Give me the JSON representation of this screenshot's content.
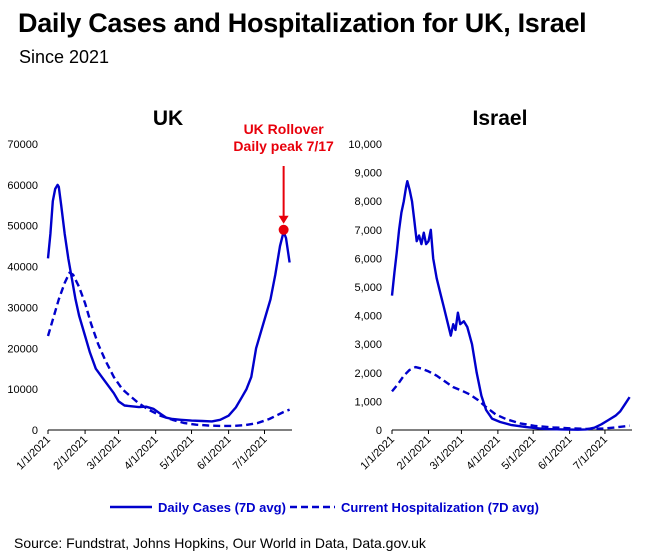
{
  "title": "Daily Cases and Hospitalization for UK, Israel",
  "subtitle": "Since 2021",
  "source": "Source: Fundstrat, Johns Hopkins, Our World in Data, Data.gov.uk",
  "legend": {
    "daily": "Daily Cases (7D avg)",
    "hosp": "Current Hospitalization (7D avg)"
  },
  "colors": {
    "series": "#0000cc",
    "annotation": "#e8000b"
  },
  "chart_data": [
    {
      "type": "line",
      "title": "UK",
      "ylim": [
        0,
        70000
      ],
      "yticks": [
        "0",
        "10000",
        "20000",
        "30000",
        "40000",
        "50000",
        "60000",
        "70000"
      ],
      "xlim": [
        "2021-01-01",
        "2021-07-24"
      ],
      "xticks": [
        {
          "date": "2021-01-01",
          "label": "1/1/2021"
        },
        {
          "date": "2021-02-01",
          "label": "2/1/2021"
        },
        {
          "date": "2021-03-01",
          "label": "3/1/2021"
        },
        {
          "date": "2021-04-01",
          "label": "4/1/2021"
        },
        {
          "date": "2021-05-01",
          "label": "5/1/2021"
        },
        {
          "date": "2021-06-01",
          "label": "6/1/2021"
        },
        {
          "date": "2021-07-01",
          "label": "7/1/2021"
        }
      ],
      "annotation": {
        "text": [
          "UK Rollover",
          "Daily peak 7/17"
        ],
        "date": "2021-07-17",
        "value": 49000
      },
      "series": [
        {
          "name": "Daily Cases (7D avg)",
          "style": "solid",
          "points": [
            [
              "2021-01-01",
              42000
            ],
            [
              "2021-01-03",
              48000
            ],
            [
              "2021-01-05",
              56000
            ],
            [
              "2021-01-07",
              59000
            ],
            [
              "2021-01-09",
              60000
            ],
            [
              "2021-01-10",
              59500
            ],
            [
              "2021-01-12",
              55000
            ],
            [
              "2021-01-15",
              48000
            ],
            [
              "2021-01-18",
              42000
            ],
            [
              "2021-01-21",
              37000
            ],
            [
              "2021-01-24",
              32000
            ],
            [
              "2021-01-27",
              28000
            ],
            [
              "2021-02-01",
              23000
            ],
            [
              "2021-02-05",
              19000
            ],
            [
              "2021-02-10",
              15000
            ],
            [
              "2021-02-15",
              13000
            ],
            [
              "2021-02-20",
              11000
            ],
            [
              "2021-02-25",
              9000
            ],
            [
              "2021-03-01",
              7000
            ],
            [
              "2021-03-06",
              6000
            ],
            [
              "2021-03-12",
              5800
            ],
            [
              "2021-03-18",
              5600
            ],
            [
              "2021-03-24",
              5700
            ],
            [
              "2021-03-30",
              5200
            ],
            [
              "2021-04-05",
              4000
            ],
            [
              "2021-04-10",
              3000
            ],
            [
              "2021-04-15",
              2700
            ],
            [
              "2021-04-22",
              2500
            ],
            [
              "2021-05-01",
              2300
            ],
            [
              "2021-05-10",
              2200
            ],
            [
              "2021-05-18",
              2100
            ],
            [
              "2021-05-25",
              2500
            ],
            [
              "2021-06-01",
              3500
            ],
            [
              "2021-06-07",
              5500
            ],
            [
              "2021-06-12",
              8000
            ],
            [
              "2021-06-16",
              10000
            ],
            [
              "2021-06-20",
              13000
            ],
            [
              "2021-06-24",
              20000
            ],
            [
              "2021-06-28",
              24000
            ],
            [
              "2021-07-02",
              28000
            ],
            [
              "2021-07-06",
              32000
            ],
            [
              "2021-07-10",
              38000
            ],
            [
              "2021-07-14",
              45000
            ],
            [
              "2021-07-17",
              48500
            ],
            [
              "2021-07-19",
              47000
            ],
            [
              "2021-07-21",
              43000
            ],
            [
              "2021-07-22",
              41000
            ]
          ]
        },
        {
          "name": "Current Hospitalization (7D avg)",
          "style": "dashed",
          "points": [
            [
              "2021-01-01",
              23000
            ],
            [
              "2021-01-05",
              27000
            ],
            [
              "2021-01-10",
              32000
            ],
            [
              "2021-01-15",
              36000
            ],
            [
              "2021-01-19",
              38500
            ],
            [
              "2021-01-22",
              38000
            ],
            [
              "2021-01-27",
              35000
            ],
            [
              "2021-02-01",
              31000
            ],
            [
              "2021-02-06",
              26000
            ],
            [
              "2021-02-12",
              21000
            ],
            [
              "2021-02-18",
              17000
            ],
            [
              "2021-02-25",
              13000
            ],
            [
              "2021-03-04",
              10000
            ],
            [
              "2021-03-10",
              8500
            ],
            [
              "2021-03-18",
              6500
            ],
            [
              "2021-03-26",
              5000
            ],
            [
              "2021-04-05",
              3500
            ],
            [
              "2021-04-15",
              2500
            ],
            [
              "2021-04-25",
              1700
            ],
            [
              "2021-05-05",
              1300
            ],
            [
              "2021-05-15",
              1100
            ],
            [
              "2021-05-25",
              1000
            ],
            [
              "2021-06-05",
              1000
            ],
            [
              "2021-06-15",
              1200
            ],
            [
              "2021-06-25",
              1700
            ],
            [
              "2021-07-05",
              2700
            ],
            [
              "2021-07-12",
              3700
            ],
            [
              "2021-07-17",
              4400
            ],
            [
              "2021-07-22",
              5000
            ]
          ]
        }
      ]
    },
    {
      "type": "line",
      "title": "Israel",
      "ylim": [
        0,
        10000
      ],
      "yticks": [
        "0",
        "1,000",
        "2,000",
        "3,000",
        "4,000",
        "5,000",
        "6,000",
        "7,000",
        "8,000",
        "9,000",
        "10,000"
      ],
      "xlim": [
        "2021-01-01",
        "2021-07-24"
      ],
      "xticks": [
        {
          "date": "2021-01-01",
          "label": "1/1/2021"
        },
        {
          "date": "2021-02-01",
          "label": "2/1/2021"
        },
        {
          "date": "2021-03-01",
          "label": "3/1/2021"
        },
        {
          "date": "2021-04-01",
          "label": "4/1/2021"
        },
        {
          "date": "2021-05-01",
          "label": "5/1/2021"
        },
        {
          "date": "2021-06-01",
          "label": "6/1/2021"
        },
        {
          "date": "2021-07-01",
          "label": "7/1/2021"
        }
      ],
      "series": [
        {
          "name": "Daily Cases (7D avg)",
          "style": "solid",
          "points": [
            [
              "2021-01-01",
              4700
            ],
            [
              "2021-01-03",
              5500
            ],
            [
              "2021-01-05",
              6200
            ],
            [
              "2021-01-07",
              7000
            ],
            [
              "2021-01-09",
              7600
            ],
            [
              "2021-01-11",
              8000
            ],
            [
              "2021-01-13",
              8500
            ],
            [
              "2021-01-14",
              8700
            ],
            [
              "2021-01-16",
              8400
            ],
            [
              "2021-01-18",
              8000
            ],
            [
              "2021-01-20",
              7300
            ],
            [
              "2021-01-22",
              6600
            ],
            [
              "2021-01-24",
              6800
            ],
            [
              "2021-01-26",
              6500
            ],
            [
              "2021-01-28",
              6900
            ],
            [
              "2021-01-30",
              6500
            ],
            [
              "2021-02-01",
              6600
            ],
            [
              "2021-02-03",
              7000
            ],
            [
              "2021-02-05",
              6000
            ],
            [
              "2021-02-08",
              5300
            ],
            [
              "2021-02-11",
              4800
            ],
            [
              "2021-02-14",
              4300
            ],
            [
              "2021-02-17",
              3800
            ],
            [
              "2021-02-20",
              3300
            ],
            [
              "2021-02-22",
              3700
            ],
            [
              "2021-02-24",
              3500
            ],
            [
              "2021-02-26",
              4100
            ],
            [
              "2021-02-28",
              3700
            ],
            [
              "2021-03-03",
              3800
            ],
            [
              "2021-03-06",
              3600
            ],
            [
              "2021-03-10",
              3000
            ],
            [
              "2021-03-14",
              2000
            ],
            [
              "2021-03-18",
              1200
            ],
            [
              "2021-03-22",
              700
            ],
            [
              "2021-03-27",
              400
            ],
            [
              "2021-04-03",
              280
            ],
            [
              "2021-04-12",
              180
            ],
            [
              "2021-04-25",
              100
            ],
            [
              "2021-05-10",
              40
            ],
            [
              "2021-05-25",
              20
            ],
            [
              "2021-06-08",
              12
            ],
            [
              "2021-06-15",
              20
            ],
            [
              "2021-06-22",
              80
            ],
            [
              "2021-06-28",
              200
            ],
            [
              "2021-07-04",
              350
            ],
            [
              "2021-07-10",
              500
            ],
            [
              "2021-07-14",
              650
            ],
            [
              "2021-07-18",
              900
            ],
            [
              "2021-07-22",
              1150
            ]
          ]
        },
        {
          "name": "Current Hospitalization (7D avg)",
          "style": "dashed",
          "points": [
            [
              "2021-01-01",
              1350
            ],
            [
              "2021-01-06",
              1600
            ],
            [
              "2021-01-11",
              1900
            ],
            [
              "2021-01-16",
              2100
            ],
            [
              "2021-01-21",
              2200
            ],
            [
              "2021-01-26",
              2150
            ],
            [
              "2021-02-01",
              2050
            ],
            [
              "2021-02-08",
              1900
            ],
            [
              "2021-02-15",
              1700
            ],
            [
              "2021-02-22",
              1500
            ],
            [
              "2021-03-01",
              1380
            ],
            [
              "2021-03-08",
              1250
            ],
            [
              "2021-03-15",
              1050
            ],
            [
              "2021-03-22",
              800
            ],
            [
              "2021-03-30",
              550
            ],
            [
              "2021-04-08",
              380
            ],
            [
              "2021-04-20",
              230
            ],
            [
              "2021-05-03",
              140
            ],
            [
              "2021-05-18",
              90
            ],
            [
              "2021-06-01",
              60
            ],
            [
              "2021-06-15",
              40
            ],
            [
              "2021-06-30",
              50
            ],
            [
              "2021-07-10",
              90
            ],
            [
              "2021-07-18",
              130
            ],
            [
              "2021-07-22",
              150
            ]
          ]
        }
      ]
    }
  ]
}
